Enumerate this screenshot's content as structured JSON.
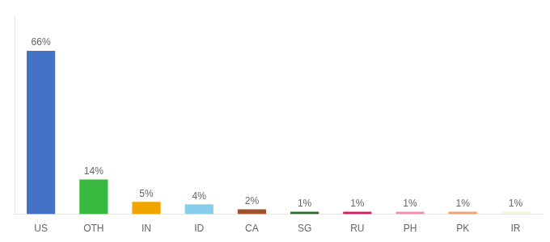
{
  "chart_data": {
    "type": "bar",
    "categories": [
      "US",
      "OTH",
      "IN",
      "ID",
      "CA",
      "SG",
      "RU",
      "PH",
      "PK",
      "IR"
    ],
    "values": [
      66,
      14,
      5,
      4,
      2,
      1,
      1,
      1,
      1,
      1
    ],
    "value_labels": [
      "66%",
      "14%",
      "5%",
      "4%",
      "2%",
      "1%",
      "1%",
      "1%",
      "1%",
      "1%"
    ],
    "data_labels": true,
    "colors": [
      "#4472c4",
      "#38b83e",
      "#f0a500",
      "#87ceeb",
      "#a0522d",
      "#2d6a2d",
      "#e0185e",
      "#f48fb1",
      "#f4a070",
      "#f5f5d8"
    ],
    "ylim": [
      0,
      80
    ],
    "tick_labels": "x",
    "grid": false
  }
}
